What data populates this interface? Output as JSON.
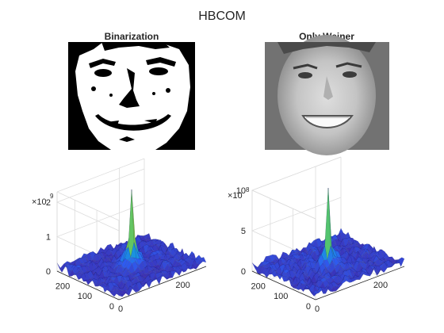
{
  "figure": {
    "title": "HBCOM"
  },
  "chart_data": [
    {
      "type": "image",
      "title": "Binarization",
      "colormap": "binary black/white",
      "content": "binarized face"
    },
    {
      "type": "image",
      "title": "Only Weiner",
      "colormap": "grayscale",
      "content": "face photograph"
    },
    {
      "type": "surface",
      "title": "",
      "exponent_label": "×10",
      "exponent": "9",
      "x_ticks": [
        "0",
        "200"
      ],
      "y_ticks": [
        "0",
        "100",
        "200"
      ],
      "z_ticks": [
        "0",
        "1",
        "2"
      ],
      "xlim": [
        0,
        280
      ],
      "ylim": [
        0,
        280
      ],
      "zlim": [
        0,
        2.3
      ],
      "peak": {
        "x": 140,
        "y": 140,
        "z": 2.2
      },
      "baseline_noise": [
        0,
        0.25
      ],
      "colormap": [
        "#3e26a8",
        "#2d5ef3",
        "#13a6d8",
        "#23c09c",
        "#8bc93e",
        "#f9e52f"
      ]
    },
    {
      "type": "surface",
      "title": "",
      "exponent_label": "×10",
      "exponent": "8",
      "x_ticks": [
        "0",
        "200"
      ],
      "y_ticks": [
        "0",
        "100",
        "200"
      ],
      "z_ticks": [
        "0",
        "5",
        "10"
      ],
      "xlim": [
        0,
        280
      ],
      "ylim": [
        0,
        280
      ],
      "zlim": [
        0,
        10
      ],
      "peak": {
        "x": 140,
        "y": 140,
        "z": 8.5
      },
      "baseline_noise": [
        0,
        1.2
      ],
      "colormap": [
        "#3e26a8",
        "#2d5ef3",
        "#13a6d8",
        "#23c09c",
        "#8bc93e",
        "#f9e52f"
      ]
    }
  ]
}
